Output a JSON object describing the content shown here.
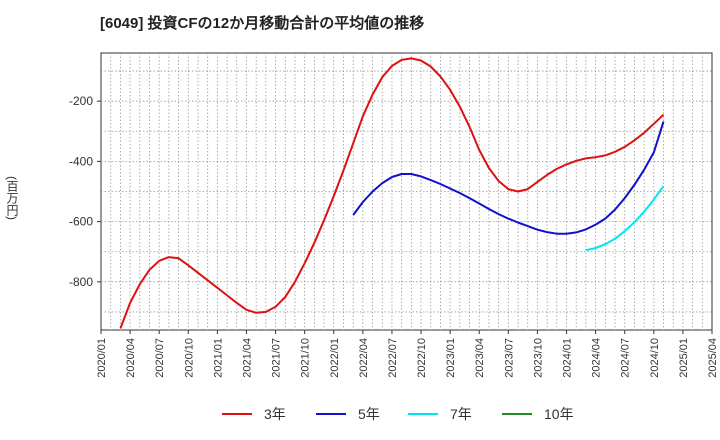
{
  "chart_data": {
    "type": "line",
    "title": "[6049]  投資CFの12か月移動合計の平均値の推移",
    "ylabel": "(百万円)",
    "xlabel": "",
    "ylim": [
      -960,
      -40
    ],
    "yticks": [
      -200,
      -400,
      -600,
      -800
    ],
    "xlim": [
      "2020-01",
      "2025-04"
    ],
    "xticks": [
      "2020/01",
      "2020/04",
      "2020/07",
      "2020/10",
      "2021/01",
      "2021/04",
      "2021/07",
      "2021/10",
      "2022/01",
      "2022/04",
      "2022/07",
      "2022/10",
      "2023/01",
      "2023/04",
      "2023/07",
      "2023/10",
      "2024/01",
      "2024/04",
      "2024/07",
      "2024/10",
      "2025/01",
      "2025/04"
    ],
    "grid": true,
    "legend_position": "bottom",
    "series": [
      {
        "name": "3年",
        "color": "#dd1111",
        "points": [
          [
            "2020-03",
            -955
          ],
          [
            "2020-04",
            -870
          ],
          [
            "2020-05",
            -808
          ],
          [
            "2020-06",
            -760
          ],
          [
            "2020-07",
            -730
          ],
          [
            "2020-08",
            -718
          ],
          [
            "2020-09",
            -722
          ],
          [
            "2020-10",
            -745
          ],
          [
            "2020-11",
            -770
          ],
          [
            "2020-12",
            -795
          ],
          [
            "2021-01",
            -820
          ],
          [
            "2021-02",
            -845
          ],
          [
            "2021-03",
            -870
          ],
          [
            "2021-04",
            -893
          ],
          [
            "2021-05",
            -903
          ],
          [
            "2021-06",
            -900
          ],
          [
            "2021-07",
            -883
          ],
          [
            "2021-08",
            -850
          ],
          [
            "2021-09",
            -800
          ],
          [
            "2021-10",
            -738
          ],
          [
            "2021-11",
            -670
          ],
          [
            "2021-12",
            -595
          ],
          [
            "2022-01",
            -515
          ],
          [
            "2022-02",
            -430
          ],
          [
            "2022-03",
            -340
          ],
          [
            "2022-04",
            -250
          ],
          [
            "2022-05",
            -178
          ],
          [
            "2022-06",
            -120
          ],
          [
            "2022-07",
            -83
          ],
          [
            "2022-08",
            -63
          ],
          [
            "2022-09",
            -58
          ],
          [
            "2022-10",
            -65
          ],
          [
            "2022-11",
            -85
          ],
          [
            "2022-12",
            -118
          ],
          [
            "2023-01",
            -162
          ],
          [
            "2023-02",
            -218
          ],
          [
            "2023-03",
            -285
          ],
          [
            "2023-04",
            -362
          ],
          [
            "2023-05",
            -422
          ],
          [
            "2023-06",
            -465
          ],
          [
            "2023-07",
            -492
          ],
          [
            "2023-08",
            -500
          ],
          [
            "2023-09",
            -492
          ],
          [
            "2023-10",
            -468
          ],
          [
            "2023-11",
            -445
          ],
          [
            "2023-12",
            -425
          ],
          [
            "2024-01",
            -410
          ],
          [
            "2024-02",
            -398
          ],
          [
            "2024-03",
            -390
          ],
          [
            "2024-04",
            -386
          ],
          [
            "2024-05",
            -380
          ],
          [
            "2024-06",
            -368
          ],
          [
            "2024-07",
            -352
          ],
          [
            "2024-08",
            -330
          ],
          [
            "2024-09",
            -305
          ],
          [
            "2024-10",
            -275
          ],
          [
            "2024-11",
            -245
          ]
        ]
      },
      {
        "name": "5年",
        "color": "#1111cc",
        "points": [
          [
            "2022-03",
            -578
          ],
          [
            "2022-04",
            -535
          ],
          [
            "2022-05",
            -500
          ],
          [
            "2022-06",
            -472
          ],
          [
            "2022-07",
            -452
          ],
          [
            "2022-08",
            -442
          ],
          [
            "2022-09",
            -442
          ],
          [
            "2022-10",
            -450
          ],
          [
            "2022-11",
            -462
          ],
          [
            "2022-12",
            -475
          ],
          [
            "2023-01",
            -490
          ],
          [
            "2023-02",
            -505
          ],
          [
            "2023-03",
            -522
          ],
          [
            "2023-04",
            -540
          ],
          [
            "2023-05",
            -558
          ],
          [
            "2023-06",
            -575
          ],
          [
            "2023-07",
            -590
          ],
          [
            "2023-08",
            -603
          ],
          [
            "2023-09",
            -615
          ],
          [
            "2023-10",
            -627
          ],
          [
            "2023-11",
            -635
          ],
          [
            "2023-12",
            -640
          ],
          [
            "2024-01",
            -640
          ],
          [
            "2024-02",
            -636
          ],
          [
            "2024-03",
            -626
          ],
          [
            "2024-04",
            -610
          ],
          [
            "2024-05",
            -590
          ],
          [
            "2024-06",
            -560
          ],
          [
            "2024-07",
            -522
          ],
          [
            "2024-08",
            -478
          ],
          [
            "2024-09",
            -428
          ],
          [
            "2024-10",
            -370
          ],
          [
            "2024-11",
            -268
          ]
        ]
      },
      {
        "name": "7年",
        "color": "#00e5ee",
        "points": [
          [
            "2024-03",
            -695
          ],
          [
            "2024-04",
            -688
          ],
          [
            "2024-05",
            -675
          ],
          [
            "2024-06",
            -657
          ],
          [
            "2024-07",
            -632
          ],
          [
            "2024-08",
            -602
          ],
          [
            "2024-09",
            -567
          ],
          [
            "2024-10",
            -527
          ],
          [
            "2024-11",
            -482
          ]
        ]
      },
      {
        "name": "10年",
        "color": "#228b22",
        "points": []
      }
    ]
  }
}
